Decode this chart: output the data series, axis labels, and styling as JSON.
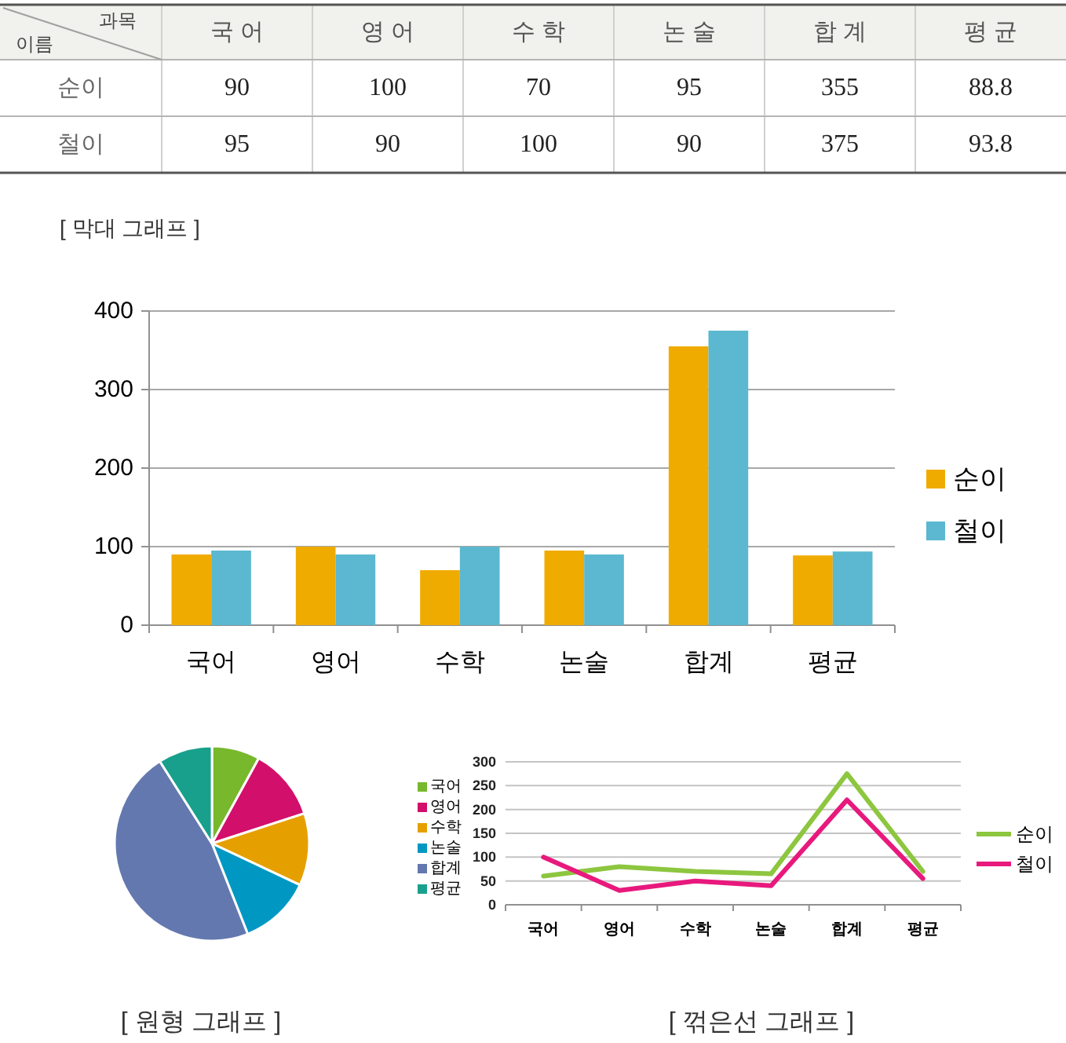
{
  "chart_data": [
    {
      "type": "heatmap",
      "xlabel": "과목",
      "ylabel": "이름",
      "categories": [
        "국 어",
        "영 어",
        "수 학",
        "논 술",
        "합 계",
        "평 균"
      ],
      "y_categories": [
        "순이",
        "철이"
      ],
      "cells": [
        [
          90,
          100,
          70,
          95,
          355,
          88.8
        ],
        [
          95,
          90,
          100,
          90,
          375,
          93.8
        ]
      ],
      "data_labels": true
    },
    {
      "type": "bar",
      "title": "[ 막대 그래프 ]",
      "categories": [
        "국어",
        "영어",
        "수학",
        "논술",
        "합계",
        "평균"
      ],
      "series": [
        {
          "name": "순이",
          "color": "#f0ab00",
          "values": [
            90,
            100,
            70,
            95,
            355,
            88.8
          ]
        },
        {
          "name": "철이",
          "color": "#5bb8d0",
          "values": [
            95,
            90,
            100,
            90,
            375,
            93.8
          ]
        }
      ],
      "ylim": [
        0,
        400
      ],
      "yticks": [
        0,
        100,
        200,
        300,
        400
      ],
      "grid": "y",
      "legend": "right"
    },
    {
      "type": "pie",
      "title": "[ 원형 그래프 ]",
      "categories": [
        "국어",
        "영어",
        "수학",
        "논술",
        "합계",
        "평균"
      ],
      "values": [
        8,
        12,
        12,
        12,
        47,
        9
      ],
      "colors": [
        "#77b82c",
        "#d20f6b",
        "#e5a000",
        "#0098c3",
        "#6478b0",
        "#18a08c"
      ],
      "legend": "right"
    },
    {
      "type": "line",
      "title": "[ 꺾은선 그래프 ]",
      "categories": [
        "국어",
        "영어",
        "수학",
        "논술",
        "합계",
        "평균"
      ],
      "series": [
        {
          "name": "순이",
          "color": "#8dc63f",
          "values": [
            60,
            80,
            70,
            65,
            275,
            70
          ]
        },
        {
          "name": "철이",
          "color": "#e8197d",
          "values": [
            100,
            30,
            50,
            40,
            220,
            55
          ]
        }
      ],
      "ylim": [
        0,
        300
      ],
      "yticks": [
        0,
        50,
        100,
        150,
        200,
        250,
        300
      ],
      "grid": "y",
      "legend": "right"
    }
  ]
}
